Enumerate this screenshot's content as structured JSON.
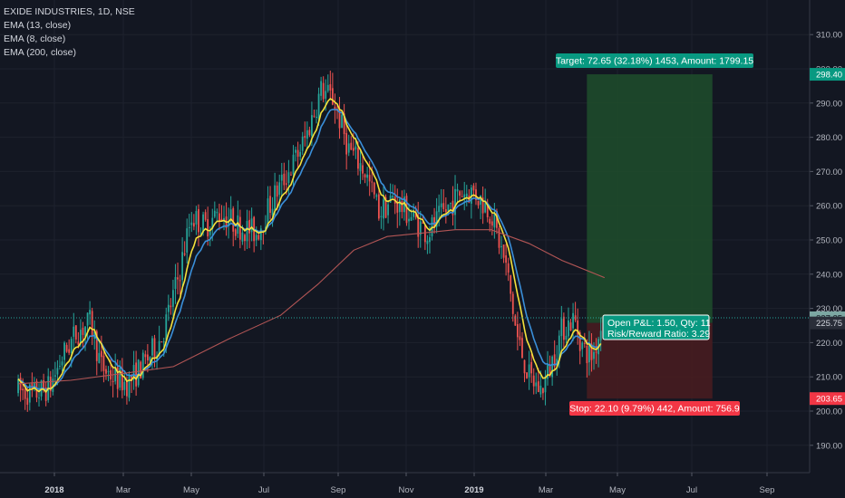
{
  "header": {
    "symbol": "EXIDE INDUSTRIES, 1D, NSE",
    "indicators": [
      "EMA (13, close)",
      "EMA (8, close)",
      "EMA (200, close)"
    ]
  },
  "colors": {
    "background": "#131722",
    "grid": "#1e222d",
    "candle_up": "#26a69a",
    "candle_down": "#ef5350",
    "ema_fast": "#3a8fd9",
    "ema_mid": "#f5e13b",
    "ema_200": "#b25555",
    "target_zone": "#1e4d2b",
    "stop_zone": "#4a1c20",
    "target_label_bg": "#089981",
    "stop_label_bg": "#f23645",
    "axis_text": "#b2b5be"
  },
  "chart_data": {
    "type": "candlestick",
    "x_ticks": [
      "2018",
      "Mar",
      "May",
      "Jul",
      "Sep",
      "Nov",
      "2019",
      "Mar",
      "May",
      "Jul",
      "Sep"
    ],
    "y_ticks": [
      190,
      200,
      210,
      220,
      230,
      240,
      250,
      260,
      270,
      280,
      290,
      300,
      310
    ],
    "ylim": [
      184,
      313
    ],
    "grid": true,
    "close_path": [
      {
        "date": "2017-12-01",
        "price": 206
      },
      {
        "date": "2017-12-15",
        "price": 205
      },
      {
        "date": "2017-12-28",
        "price": 207
      },
      {
        "date": "2018-01-08",
        "price": 216
      },
      {
        "date": "2018-01-20",
        "price": 223
      },
      {
        "date": "2018-02-01",
        "price": 226
      },
      {
        "date": "2018-02-10",
        "price": 213
      },
      {
        "date": "2018-02-20",
        "price": 210
      },
      {
        "date": "2018-03-05",
        "price": 208
      },
      {
        "date": "2018-03-20",
        "price": 214
      },
      {
        "date": "2018-04-05",
        "price": 222
      },
      {
        "date": "2018-04-20",
        "price": 240
      },
      {
        "date": "2018-05-01",
        "price": 257
      },
      {
        "date": "2018-05-12",
        "price": 254
      },
      {
        "date": "2018-05-25",
        "price": 258
      },
      {
        "date": "2018-06-10",
        "price": 254
      },
      {
        "date": "2018-06-25",
        "price": 252
      },
      {
        "date": "2018-07-10",
        "price": 263
      },
      {
        "date": "2018-07-25",
        "price": 272
      },
      {
        "date": "2018-08-05",
        "price": 280
      },
      {
        "date": "2018-08-18",
        "price": 294
      },
      {
        "date": "2018-08-28",
        "price": 291
      },
      {
        "date": "2018-09-10",
        "price": 277
      },
      {
        "date": "2018-09-25",
        "price": 270
      },
      {
        "date": "2018-10-08",
        "price": 258
      },
      {
        "date": "2018-10-20",
        "price": 262
      },
      {
        "date": "2018-11-05",
        "price": 257
      },
      {
        "date": "2018-11-20",
        "price": 252
      },
      {
        "date": "2018-12-05",
        "price": 258
      },
      {
        "date": "2018-12-20",
        "price": 264
      },
      {
        "date": "2019-01-01",
        "price": 264
      },
      {
        "date": "2019-01-15",
        "price": 258
      },
      {
        "date": "2019-01-28",
        "price": 241
      },
      {
        "date": "2019-02-05",
        "price": 222
      },
      {
        "date": "2019-02-15",
        "price": 210
      },
      {
        "date": "2019-02-25",
        "price": 206
      },
      {
        "date": "2019-03-05",
        "price": 213
      },
      {
        "date": "2019-03-15",
        "price": 224
      },
      {
        "date": "2019-03-25",
        "price": 227
      },
      {
        "date": "2019-04-02",
        "price": 218
      },
      {
        "date": "2019-04-10",
        "price": 216
      },
      {
        "date": "2019-04-18",
        "price": 226
      }
    ],
    "ema200_path": [
      {
        "date": "2017-12-01",
        "price": 208
      },
      {
        "date": "2018-01-15",
        "price": 209
      },
      {
        "date": "2018-03-01",
        "price": 211
      },
      {
        "date": "2018-04-15",
        "price": 213
      },
      {
        "date": "2018-06-01",
        "price": 221
      },
      {
        "date": "2018-07-15",
        "price": 228
      },
      {
        "date": "2018-08-15",
        "price": 237
      },
      {
        "date": "2018-09-15",
        "price": 247
      },
      {
        "date": "2018-10-15",
        "price": 251
      },
      {
        "date": "2018-11-15",
        "price": 252
      },
      {
        "date": "2018-12-15",
        "price": 253
      },
      {
        "date": "2019-01-15",
        "price": 253
      },
      {
        "date": "2019-02-15",
        "price": 249
      },
      {
        "date": "2019-03-15",
        "price": 244
      },
      {
        "date": "2019-04-20",
        "price": 239
      }
    ],
    "position": {
      "entry": 225.75,
      "target": 298.4,
      "stop": 203.65,
      "start_date": "2019-04-05",
      "end_date": "2019-07-18",
      "target_label": "Target: 72.65 (32.18%) 1453, Amount: 1799.15",
      "stop_label": "Stop: 22.10 (9.79%) 442, Amount: 756.9",
      "pnl_label": "Open P&L: 1.50, Qty: 11",
      "rr_label": "Risk/Reward Ratio: 3.29"
    },
    "last_price": 227.25,
    "price_labels": {
      "target": "298.40",
      "last": "227.25",
      "entry": "225.75",
      "stop": "203.65"
    }
  }
}
